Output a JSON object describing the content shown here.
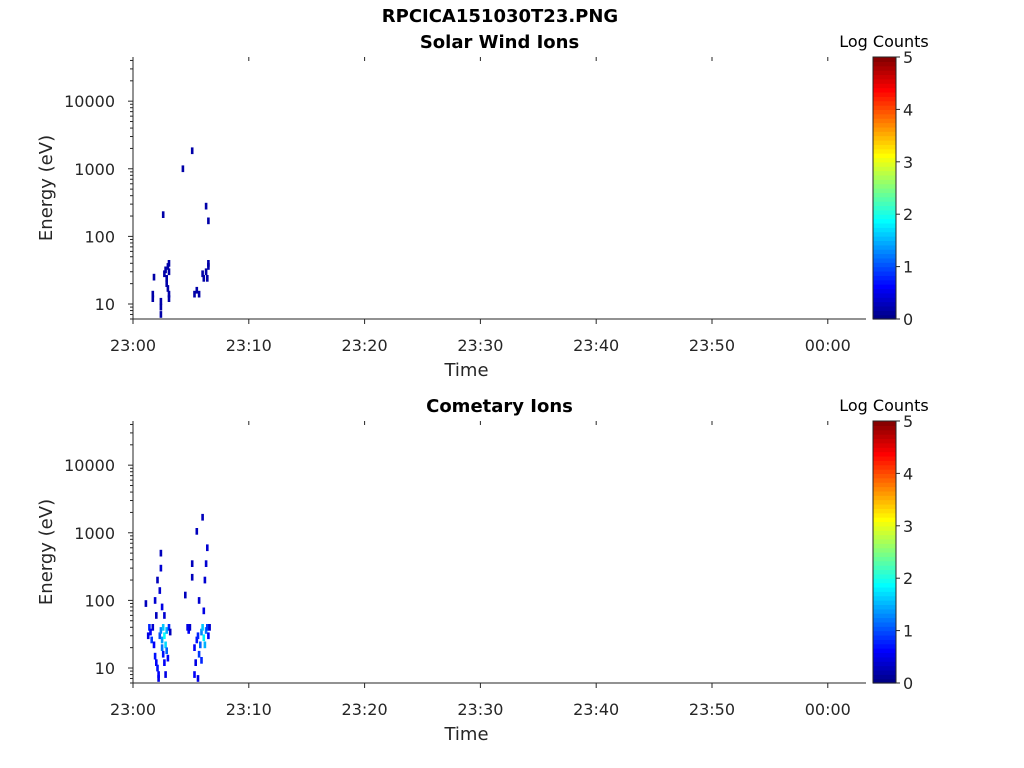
{
  "figure_title": "RPCICA151030T23.PNG",
  "colormap": [
    "#00007f",
    "#0000ff",
    "#007fff",
    "#00ffff",
    "#7fff7f",
    "#ffff00",
    "#ff7f00",
    "#ff0000",
    "#7f0000"
  ],
  "chart_data": [
    {
      "type": "heatmap",
      "title": "Solar Wind Ions",
      "xlabel": "Time",
      "ylabel": "Energy (eV)",
      "x_ticks": [
        "23:00",
        "23:10",
        "23:20",
        "23:30",
        "23:40",
        "23:50",
        "00:00"
      ],
      "x_range_minutes": [
        0,
        63.3
      ],
      "y_ticks": [
        "10",
        "100",
        "1000",
        "10000"
      ],
      "y_tick_values": [
        10,
        100,
        1000,
        10000
      ],
      "y_scale": "log",
      "ylim": [
        6,
        45000
      ],
      "colorbar_label": "Log Counts",
      "colorbar_ticks": [
        "0",
        "1",
        "2",
        "3",
        "4",
        "5"
      ],
      "clim": [
        0,
        5
      ],
      "cells": [
        [
          1.6,
          12,
          0.2
        ],
        [
          1.6,
          14,
          0.2
        ],
        [
          1.7,
          25,
          0.2
        ],
        [
          2.3,
          7,
          0.2
        ],
        [
          2.3,
          9,
          0.2
        ],
        [
          2.3,
          11,
          0.2
        ],
        [
          2.5,
          210,
          0.2
        ],
        [
          2.6,
          28,
          0.2
        ],
        [
          2.7,
          32,
          0.2
        ],
        [
          2.8,
          24,
          0.2
        ],
        [
          2.8,
          20,
          0.2
        ],
        [
          2.9,
          36,
          0.2
        ],
        [
          2.9,
          17,
          0.2
        ],
        [
          3.0,
          40,
          0.2
        ],
        [
          3.0,
          30,
          0.2
        ],
        [
          3.0,
          14,
          0.2
        ],
        [
          3.0,
          12,
          0.2
        ],
        [
          4.2,
          1000,
          0.2
        ],
        [
          5.0,
          1850,
          0.2
        ],
        [
          5.2,
          14,
          0.2
        ],
        [
          5.4,
          16,
          0.2
        ],
        [
          5.6,
          14,
          0.2
        ],
        [
          5.9,
          28,
          0.2
        ],
        [
          6.0,
          24,
          0.2
        ],
        [
          6.2,
          30,
          0.2
        ],
        [
          6.3,
          24,
          0.2
        ],
        [
          6.2,
          280,
          0.2
        ],
        [
          6.4,
          170,
          0.2
        ],
        [
          6.4,
          36,
          0.2
        ],
        [
          6.4,
          40,
          0.2
        ]
      ]
    },
    {
      "type": "heatmap",
      "title": "Cometary Ions",
      "xlabel": "Time",
      "ylabel": "Energy (eV)",
      "x_ticks": [
        "23:00",
        "23:10",
        "23:20",
        "23:30",
        "23:40",
        "23:50",
        "00:00"
      ],
      "x_range_minutes": [
        0,
        63.3
      ],
      "y_ticks": [
        "10",
        "100",
        "1000",
        "10000"
      ],
      "y_tick_values": [
        10,
        100,
        1000,
        10000
      ],
      "y_scale": "log",
      "ylim": [
        6,
        45000
      ],
      "colorbar_label": "Log Counts",
      "colorbar_ticks": [
        "0",
        "1",
        "2",
        "3",
        "4",
        "5"
      ],
      "clim": [
        0,
        5
      ],
      "cells": [
        [
          1.0,
          90,
          0.3
        ],
        [
          1.2,
          30,
          0.5
        ],
        [
          1.3,
          40,
          0.8
        ],
        [
          1.4,
          34,
          0.6
        ],
        [
          1.5,
          26,
          0.9
        ],
        [
          1.6,
          40,
          0.4
        ],
        [
          1.7,
          22,
          0.6
        ],
        [
          1.8,
          15,
          0.7
        ],
        [
          1.8,
          100,
          0.4
        ],
        [
          1.9,
          60,
          0.3
        ],
        [
          1.9,
          12,
          0.6
        ],
        [
          2.0,
          10,
          0.7
        ],
        [
          2.0,
          200,
          0.3
        ],
        [
          2.1,
          7,
          0.5
        ],
        [
          2.1,
          8,
          0.6
        ],
        [
          2.2,
          30,
          1.0
        ],
        [
          2.2,
          140,
          0.4
        ],
        [
          2.3,
          36,
          1.3
        ],
        [
          2.3,
          300,
          0.4
        ],
        [
          2.3,
          500,
          0.3
        ],
        [
          2.4,
          20,
          1.2
        ],
        [
          2.4,
          26,
          1.4
        ],
        [
          2.4,
          80,
          0.5
        ],
        [
          2.5,
          40,
          1.6
        ],
        [
          2.5,
          16,
          0.7
        ],
        [
          2.6,
          30,
          1.9
        ],
        [
          2.6,
          12,
          0.6
        ],
        [
          2.6,
          60,
          0.4
        ],
        [
          2.7,
          22,
          1.7
        ],
        [
          2.7,
          8,
          0.5
        ],
        [
          2.8,
          36,
          1.5
        ],
        [
          2.8,
          18,
          1.1
        ],
        [
          2.9,
          14,
          0.6
        ],
        [
          3.0,
          40,
          0.8
        ],
        [
          3.1,
          34,
          0.3
        ],
        [
          4.4,
          120,
          0.3
        ],
        [
          4.6,
          40,
          0.5
        ],
        [
          4.7,
          36,
          0.6
        ],
        [
          4.8,
          40,
          0.4
        ],
        [
          5.0,
          350,
          0.3
        ],
        [
          5.0,
          220,
          0.3
        ],
        [
          5.2,
          20,
          0.6
        ],
        [
          5.2,
          8,
          0.6
        ],
        [
          5.3,
          12,
          0.5
        ],
        [
          5.4,
          26,
          0.7
        ],
        [
          5.4,
          1050,
          0.3
        ],
        [
          5.5,
          30,
          0.8
        ],
        [
          5.5,
          7,
          0.5
        ],
        [
          5.6,
          16,
          0.9
        ],
        [
          5.6,
          100,
          0.4
        ],
        [
          5.7,
          22,
          1.1
        ],
        [
          5.8,
          34,
          1.3
        ],
        [
          5.8,
          13,
          0.8
        ],
        [
          5.9,
          40,
          1.6
        ],
        [
          5.9,
          1700,
          0.3
        ],
        [
          6.0,
          28,
          1.8
        ],
        [
          6.0,
          70,
          0.5
        ],
        [
          6.1,
          22,
          1.5
        ],
        [
          6.1,
          200,
          0.4
        ],
        [
          6.2,
          36,
          1.2
        ],
        [
          6.2,
          350,
          0.4
        ],
        [
          6.3,
          40,
          0.9
        ],
        [
          6.3,
          600,
          0.4
        ],
        [
          6.4,
          30,
          0.6
        ],
        [
          6.5,
          40,
          0.4
        ]
      ]
    }
  ]
}
